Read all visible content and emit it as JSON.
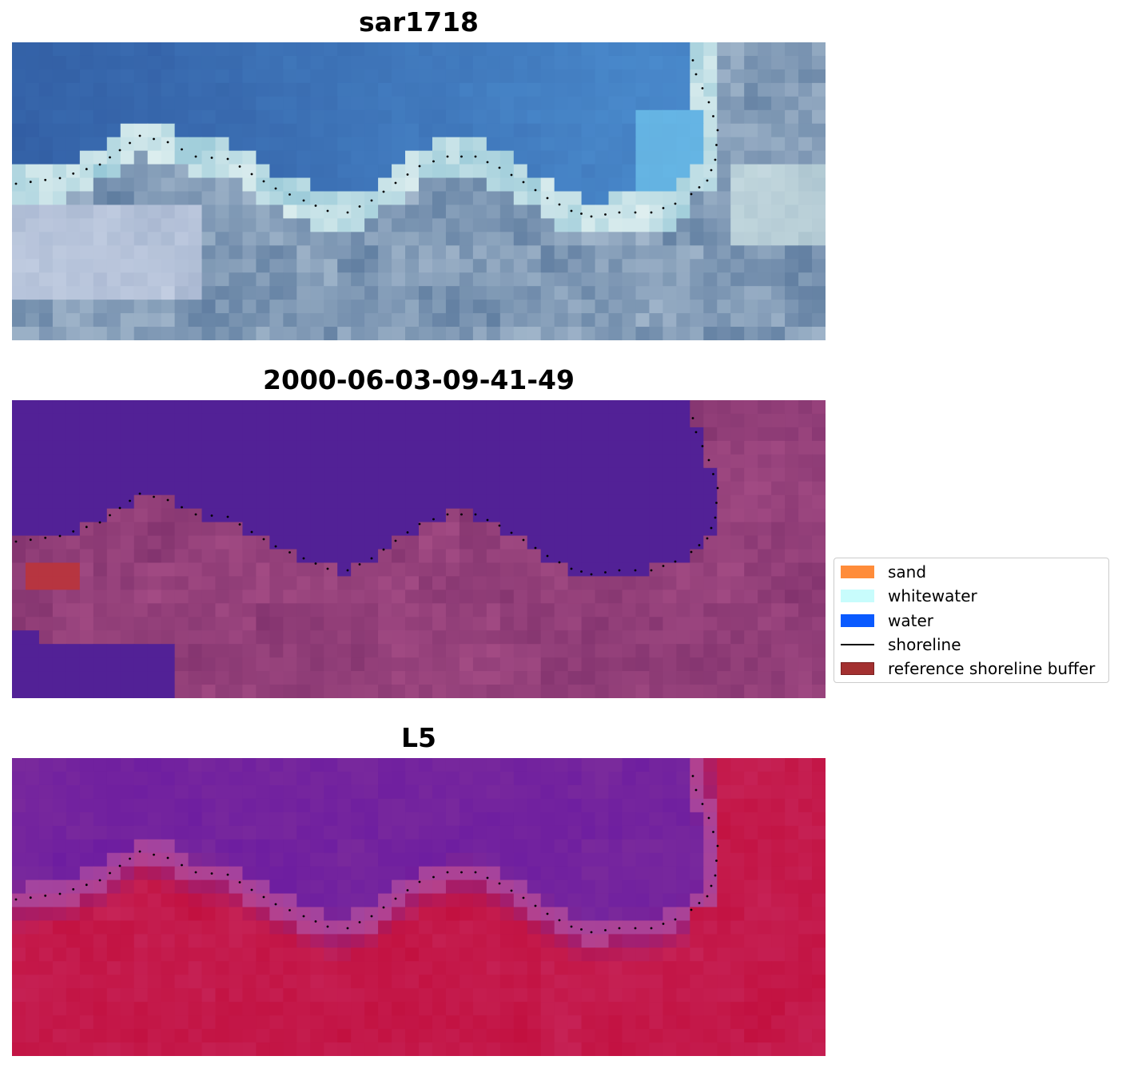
{
  "panels": [
    {
      "title": "sar1718",
      "style": "rgb"
    },
    {
      "title": "2000-06-03-09-41-49",
      "style": "class"
    },
    {
      "title": "L5",
      "style": "index"
    }
  ],
  "legend": {
    "items": [
      {
        "label": "sand",
        "color": "#ff8c3a",
        "kind": "patch"
      },
      {
        "label": "whitewater",
        "color": "#c8fcfc",
        "kind": "patch"
      },
      {
        "label": "water",
        "color": "#0a5aff",
        "kind": "patch"
      },
      {
        "label": "shoreline",
        "color": "#000000",
        "kind": "line"
      },
      {
        "label": "reference shoreline buffer",
        "color": "#a33030",
        "kind": "patch"
      }
    ]
  },
  "colors": {
    "water_class": "#522196",
    "land_class": "#82336e",
    "buffer_class": "#b73540",
    "ndwi_water": "#7a2a9c",
    "ndwi_land": "#c2103f",
    "shoreline_dots": "#000000"
  }
}
